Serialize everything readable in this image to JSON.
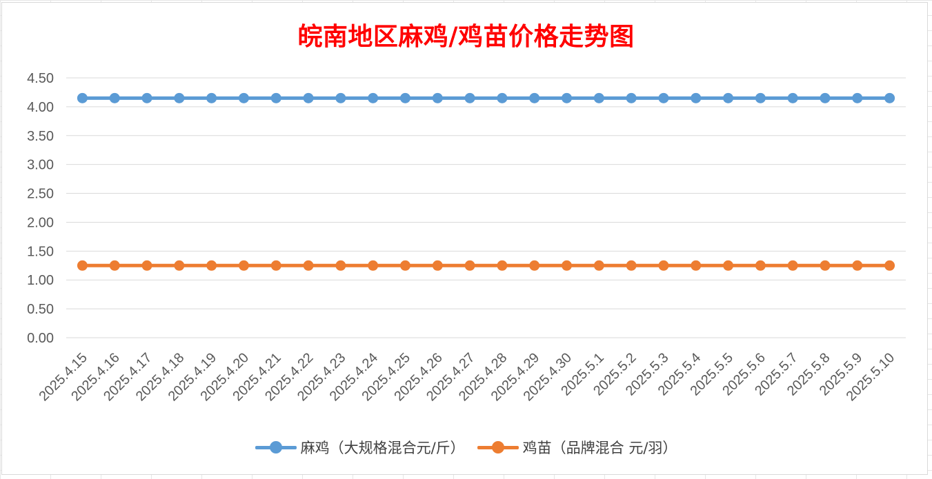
{
  "chart_data": {
    "type": "line",
    "title": "皖南地区麻鸡/鸡苗价格走势图",
    "categories": [
      "2025.4.15",
      "2025.4.16",
      "2025.4.17",
      "2025.4.18",
      "2025.4.19",
      "2025.4.20",
      "2025.4.21",
      "2025.4.22",
      "2025.4.23",
      "2025.4.24",
      "2025.4.25",
      "2025.4.26",
      "2025.4.27",
      "2025.4.28",
      "2025.4.29",
      "2025.4.30",
      "2025.5.1",
      "2025.5.2",
      "2025.5.3",
      "2025.5.4",
      "2025.5.5",
      "2025.5.6",
      "2025.5.7",
      "2025.5.8",
      "2025.5.9",
      "2025.5.10"
    ],
    "series": [
      {
        "name": "麻鸡（大规格混合元/斤）",
        "color": "#5b9bd5",
        "values": [
          4.15,
          4.15,
          4.15,
          4.15,
          4.15,
          4.15,
          4.15,
          4.15,
          4.15,
          4.15,
          4.15,
          4.15,
          4.15,
          4.15,
          4.15,
          4.15,
          4.15,
          4.15,
          4.15,
          4.15,
          4.15,
          4.15,
          4.15,
          4.15,
          4.15,
          4.15
        ]
      },
      {
        "name": "鸡苗（品牌混合 元/羽）",
        "color": "#ed7d31",
        "values": [
          1.25,
          1.25,
          1.25,
          1.25,
          1.25,
          1.25,
          1.25,
          1.25,
          1.25,
          1.25,
          1.25,
          1.25,
          1.25,
          1.25,
          1.25,
          1.25,
          1.25,
          1.25,
          1.25,
          1.25,
          1.25,
          1.25,
          1.25,
          1.25,
          1.25,
          1.25
        ]
      }
    ],
    "yticks": [
      "0.00",
      "0.50",
      "1.00",
      "1.50",
      "2.00",
      "2.50",
      "3.00",
      "3.50",
      "4.00",
      "4.50"
    ],
    "ylim": [
      0,
      4.5
    ],
    "grid": true,
    "legend_position": "bottom",
    "title_color": "#ff0000"
  }
}
